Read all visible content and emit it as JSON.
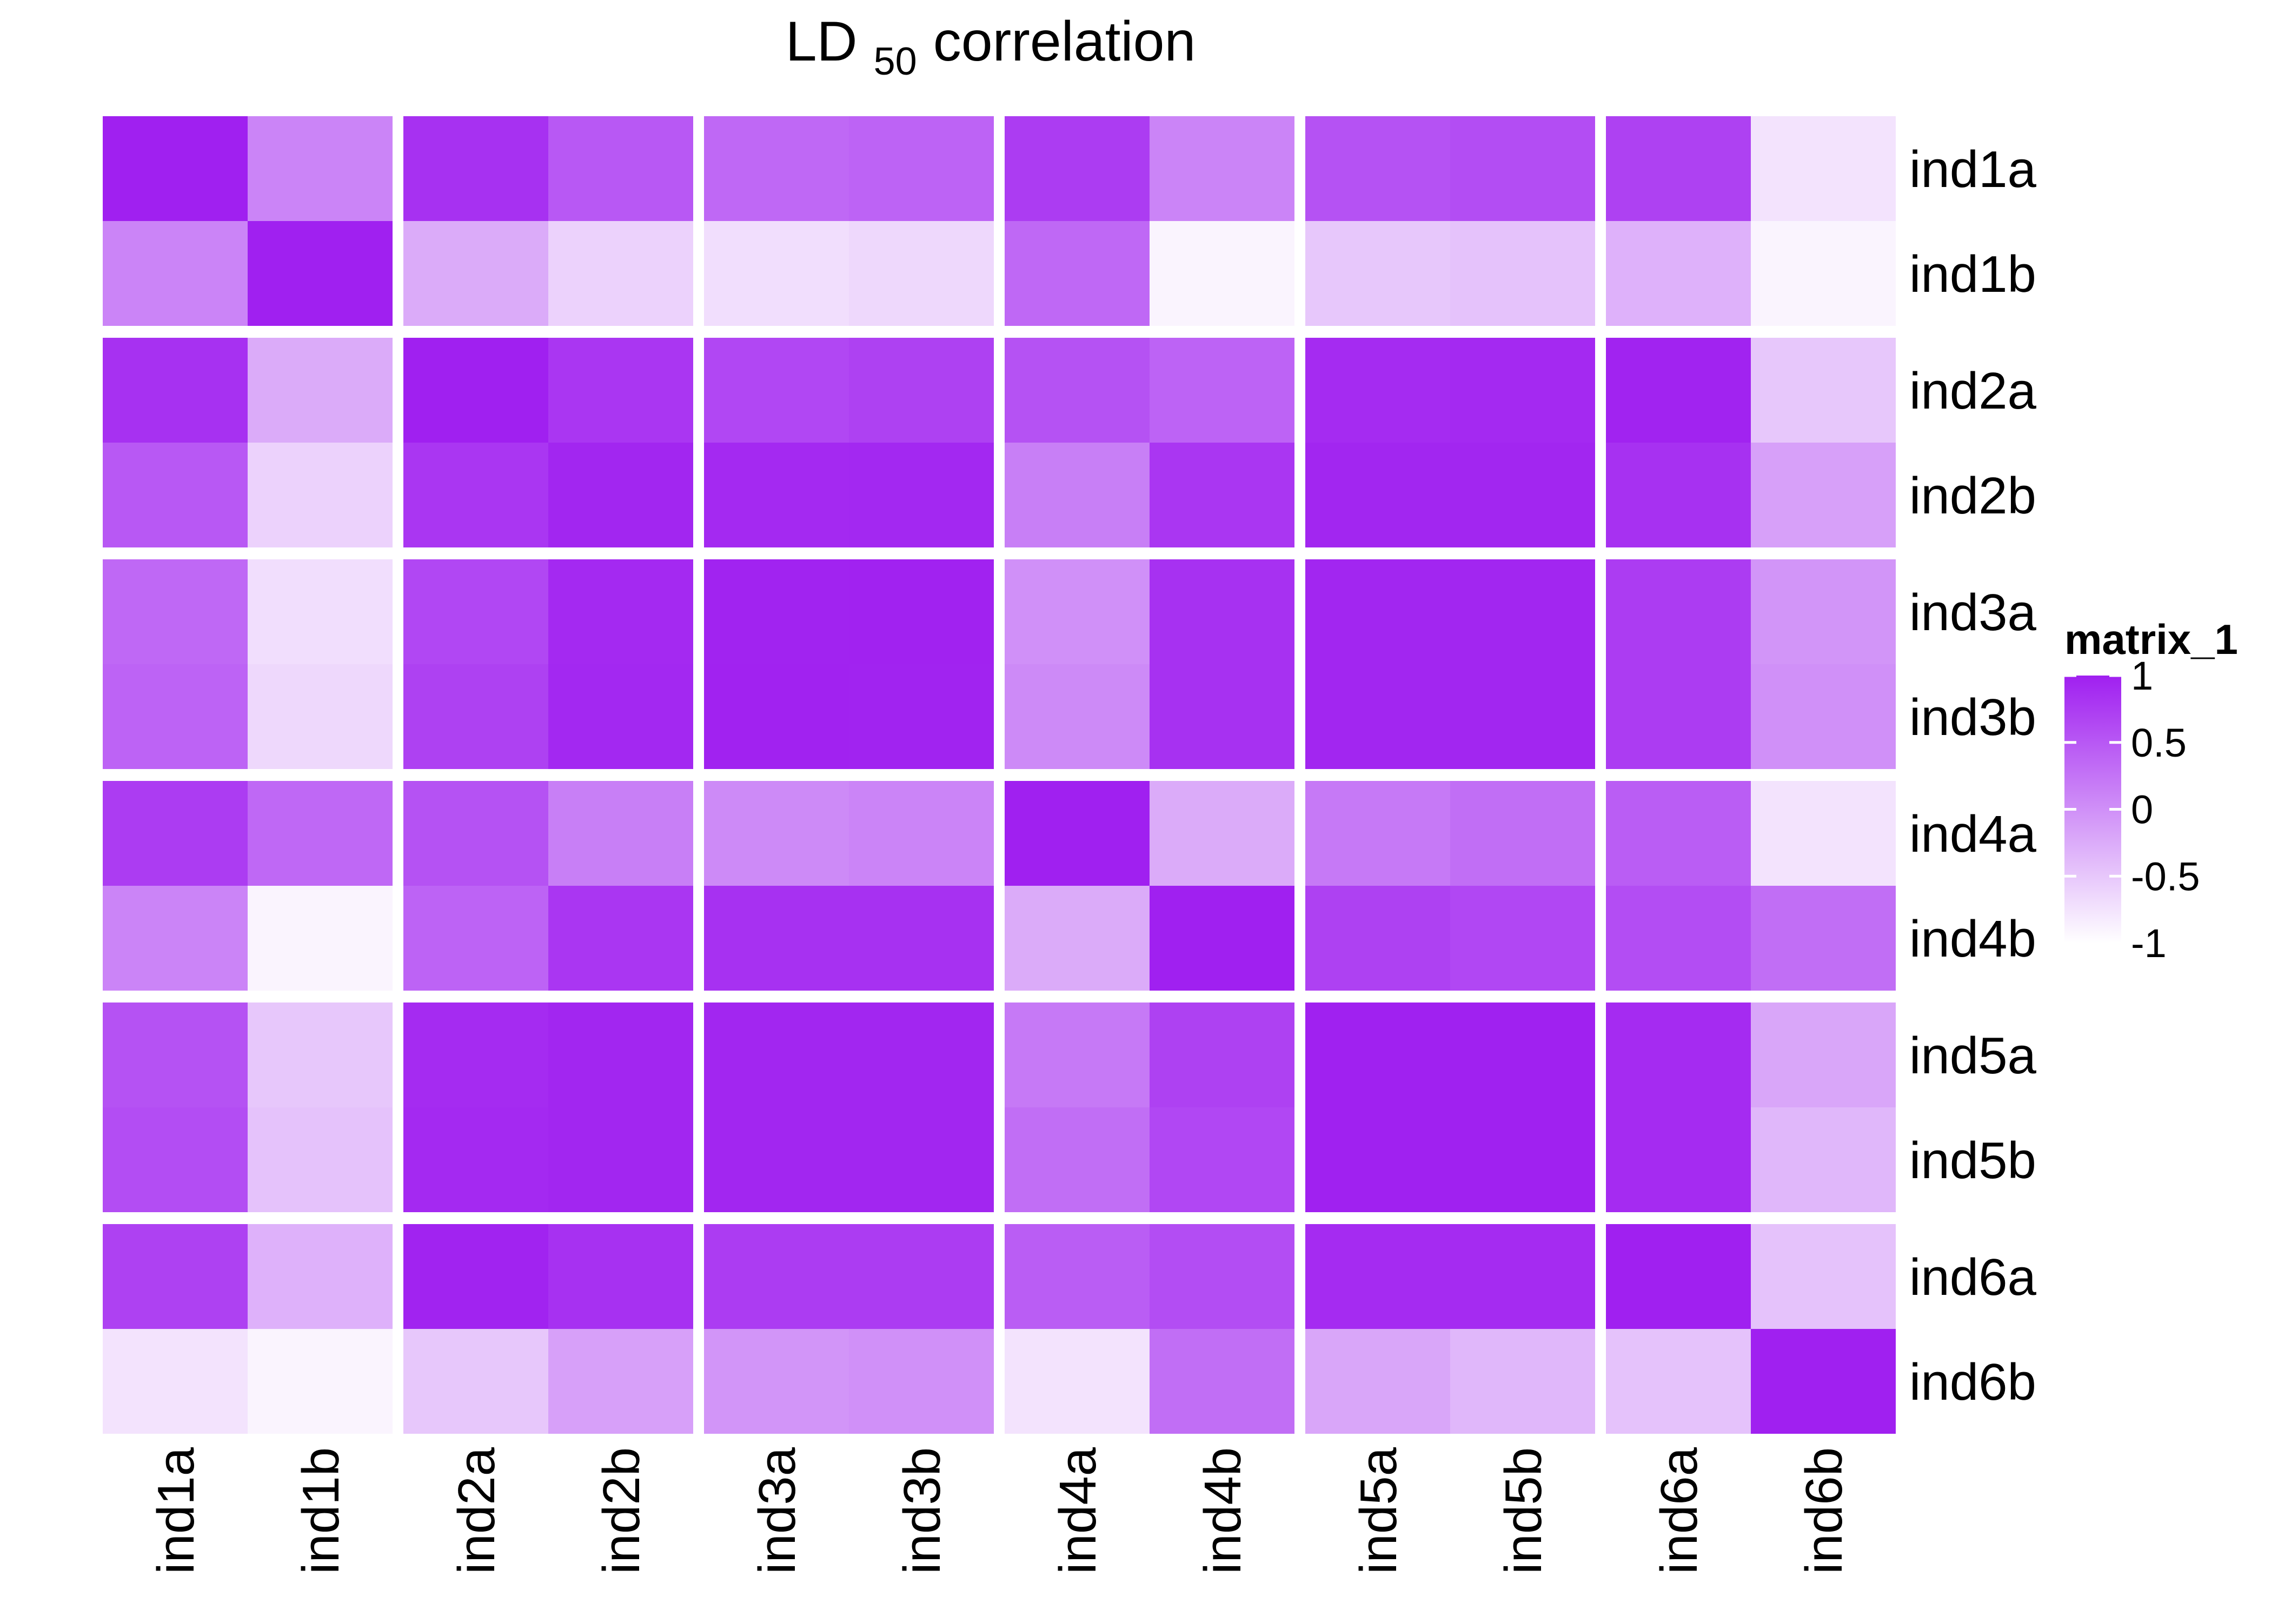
{
  "chart_data": {
    "type": "heatmap",
    "title": "LD",
    "title_subscript": "50",
    "title_suffix": "correlation",
    "rows": [
      "ind1a",
      "ind1b",
      "ind2a",
      "ind2b",
      "ind3a",
      "ind3b",
      "ind4a",
      "ind4b",
      "ind5a",
      "ind5b",
      "ind6a",
      "ind6b"
    ],
    "columns": [
      "ind1a",
      "ind1b",
      "ind2a",
      "ind2b",
      "ind3a",
      "ind3b",
      "ind4a",
      "ind4b",
      "ind5a",
      "ind5b",
      "ind6a",
      "ind6b"
    ],
    "row_groups": [
      [
        "ind1a",
        "ind1b"
      ],
      [
        "ind2a",
        "ind2b"
      ],
      [
        "ind3a",
        "ind3b"
      ],
      [
        "ind4a",
        "ind4b"
      ],
      [
        "ind5a",
        "ind5b"
      ],
      [
        "ind6a",
        "ind6b"
      ]
    ],
    "column_groups": [
      [
        "ind1a",
        "ind1b"
      ],
      [
        "ind2a",
        "ind2b"
      ],
      [
        "ind3a",
        "ind3b"
      ],
      [
        "ind4a",
        "ind4b"
      ],
      [
        "ind5a",
        "ind5b"
      ],
      [
        "ind6a",
        "ind6b"
      ]
    ],
    "values": [
      [
        1.0,
        0.1,
        0.85,
        0.5,
        0.35,
        0.4,
        0.75,
        0.1,
        0.55,
        0.6,
        0.7,
        -0.75
      ],
      [
        0.1,
        1.0,
        -0.25,
        -0.6,
        -0.7,
        -0.65,
        0.35,
        -0.9,
        -0.5,
        -0.45,
        -0.3,
        -0.9
      ],
      [
        0.85,
        -0.25,
        1.0,
        0.8,
        0.65,
        0.7,
        0.55,
        0.4,
        0.9,
        0.92,
        0.97,
        -0.5
      ],
      [
        0.5,
        -0.6,
        0.8,
        0.95,
        0.92,
        0.93,
        0.15,
        0.8,
        0.95,
        0.95,
        0.85,
        -0.15
      ],
      [
        0.35,
        -0.7,
        0.65,
        0.92,
        0.97,
        0.98,
        0.0,
        0.85,
        0.95,
        0.95,
        0.75,
        -0.05
      ],
      [
        0.4,
        -0.65,
        0.7,
        0.93,
        0.98,
        0.97,
        0.05,
        0.85,
        0.95,
        0.95,
        0.75,
        0.0
      ],
      [
        0.75,
        0.35,
        0.55,
        0.15,
        0.05,
        0.1,
        1.0,
        -0.25,
        0.2,
        0.3,
        0.45,
        -0.75
      ],
      [
        0.1,
        -0.9,
        0.4,
        0.8,
        0.85,
        0.85,
        -0.25,
        1.0,
        0.7,
        0.65,
        0.6,
        0.3
      ],
      [
        0.55,
        -0.5,
        0.9,
        0.95,
        0.95,
        0.95,
        0.2,
        0.7,
        0.99,
        0.99,
        0.9,
        -0.2
      ],
      [
        0.6,
        -0.45,
        0.92,
        0.95,
        0.95,
        0.95,
        0.3,
        0.65,
        0.99,
        0.99,
        0.9,
        -0.35
      ],
      [
        0.7,
        -0.3,
        0.97,
        0.85,
        0.75,
        0.75,
        0.45,
        0.6,
        0.9,
        0.9,
        1.0,
        -0.45
      ],
      [
        -0.75,
        -0.9,
        -0.5,
        -0.15,
        -0.05,
        0.0,
        -0.75,
        0.3,
        -0.2,
        -0.35,
        -0.45,
        1.0
      ]
    ],
    "colorbar": {
      "title": "matrix_1",
      "ticks": [
        1,
        0.5,
        0,
        -0.5,
        -1
      ],
      "tick_labels": [
        "1",
        "0.5",
        "0",
        "-0.5",
        "-1"
      ],
      "range": [
        -1,
        1
      ],
      "color_low": "#ffffff",
      "color_high": "#a020f0"
    },
    "grid": false,
    "legend_position": "right"
  }
}
